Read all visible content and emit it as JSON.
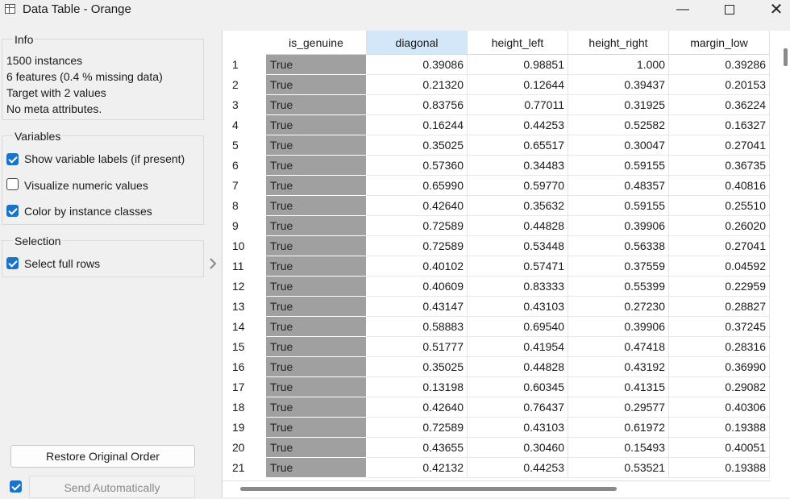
{
  "window": {
    "title": "Data Table - Orange",
    "controls": [
      "minimize-icon",
      "maximize-icon",
      "close-icon"
    ]
  },
  "info": {
    "title": "Info",
    "lines": [
      "1500 instances",
      "6 features (0.4 % missing data)",
      "Target with 2 values",
      "No meta attributes."
    ]
  },
  "variables": {
    "title": "Variables",
    "options": [
      {
        "label": "Show variable labels (if present)",
        "checked": true
      },
      {
        "label": "Visualize numeric values",
        "checked": false
      },
      {
        "label": "Color by instance classes",
        "checked": true
      }
    ]
  },
  "selection": {
    "title": "Selection",
    "options": [
      {
        "label": "Select full rows",
        "checked": true
      }
    ]
  },
  "buttons": {
    "restore": "Restore Original Order",
    "send": "Send Automatically",
    "send_checked": true
  },
  "colors": {
    "accent": "#1a73c8",
    "class_cell": "#a0a0a0",
    "selected_header": "#d3e7f8"
  },
  "table": {
    "columns": [
      "is_genuine",
      "diagonal",
      "height_left",
      "height_right",
      "margin_low"
    ],
    "selected_column": "diagonal",
    "rows": [
      [
        "1",
        "True",
        "0.39086",
        "0.98851",
        "1.000",
        "0.39286"
      ],
      [
        "2",
        "True",
        "0.21320",
        "0.12644",
        "0.39437",
        "0.20153"
      ],
      [
        "3",
        "True",
        "0.83756",
        "0.77011",
        "0.31925",
        "0.36224"
      ],
      [
        "4",
        "True",
        "0.16244",
        "0.44253",
        "0.52582",
        "0.16327"
      ],
      [
        "5",
        "True",
        "0.35025",
        "0.65517",
        "0.30047",
        "0.27041"
      ],
      [
        "6",
        "True",
        "0.57360",
        "0.34483",
        "0.59155",
        "0.36735"
      ],
      [
        "7",
        "True",
        "0.65990",
        "0.59770",
        "0.48357",
        "0.40816"
      ],
      [
        "8",
        "True",
        "0.42640",
        "0.35632",
        "0.59155",
        "0.25510"
      ],
      [
        "9",
        "True",
        "0.72589",
        "0.44828",
        "0.39906",
        "0.26020"
      ],
      [
        "10",
        "True",
        "0.72589",
        "0.53448",
        "0.56338",
        "0.27041"
      ],
      [
        "11",
        "True",
        "0.40102",
        "0.57471",
        "0.37559",
        "0.04592"
      ],
      [
        "12",
        "True",
        "0.40609",
        "0.83333",
        "0.55399",
        "0.22959"
      ],
      [
        "13",
        "True",
        "0.43147",
        "0.43103",
        "0.27230",
        "0.28827"
      ],
      [
        "14",
        "True",
        "0.58883",
        "0.69540",
        "0.39906",
        "0.37245"
      ],
      [
        "15",
        "True",
        "0.51777",
        "0.41954",
        "0.47418",
        "0.28316"
      ],
      [
        "16",
        "True",
        "0.35025",
        "0.44828",
        "0.43192",
        "0.36990"
      ],
      [
        "17",
        "True",
        "0.13198",
        "0.60345",
        "0.41315",
        "0.29082"
      ],
      [
        "18",
        "True",
        "0.42640",
        "0.76437",
        "0.29577",
        "0.40306"
      ],
      [
        "19",
        "True",
        "0.72589",
        "0.43103",
        "0.61972",
        "0.19388"
      ],
      [
        "20",
        "True",
        "0.43655",
        "0.30460",
        "0.15493",
        "0.40051"
      ],
      [
        "21",
        "True",
        "0.42132",
        "0.44253",
        "0.53521",
        "0.19388"
      ]
    ]
  }
}
